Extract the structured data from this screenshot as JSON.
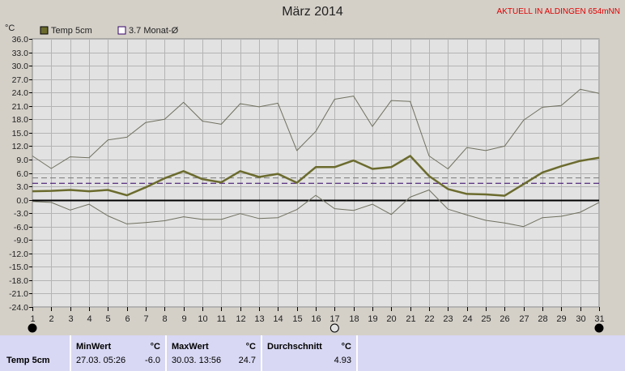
{
  "header": {
    "title": "März 2014",
    "status": "AKTUELL IN ALDINGEN 654mNN"
  },
  "chart_data": {
    "type": "line",
    "ylabel": "°C",
    "ylim": [
      -24,
      36
    ],
    "yticks": [
      "36.0",
      "33.0",
      "30.0",
      "27.0",
      "24.0",
      "21.0",
      "18.0",
      "15.0",
      "12.0",
      "9.0",
      "6.0",
      "3.0",
      "0.0",
      "-3.0",
      "-6.0",
      "-9.0",
      "-12.0",
      "-15.0",
      "-18.0",
      "-21.0",
      "-24.0"
    ],
    "x": [
      1,
      2,
      3,
      4,
      5,
      6,
      7,
      8,
      9,
      10,
      11,
      12,
      13,
      14,
      15,
      16,
      17,
      18,
      19,
      20,
      21,
      22,
      23,
      24,
      25,
      26,
      27,
      28,
      29,
      30,
      31
    ],
    "legend": [
      {
        "label": "Temp 5cm",
        "color": "#6b6b2e"
      },
      {
        "label": "3.7 Monat-Ø",
        "color": "#330066"
      }
    ],
    "series": [
      {
        "name": "Temp 5cm",
        "color": "#6b6b2e",
        "values": [
          1.9,
          2.0,
          2.2,
          1.9,
          2.2,
          1.0,
          2.8,
          4.8,
          6.4,
          4.6,
          3.9,
          6.4,
          5.1,
          5.8,
          3.8,
          7.3,
          7.3,
          8.8,
          6.9,
          7.3,
          9.8,
          5.3,
          2.4,
          1.3,
          1.2,
          0.9,
          3.5,
          6.1,
          7.5,
          8.7,
          9.4
        ]
      },
      {
        "name": "Max",
        "color": "#707060",
        "values": [
          9.8,
          7.0,
          9.6,
          9.4,
          13.4,
          14.0,
          17.3,
          18.0,
          21.8,
          17.6,
          16.9,
          21.5,
          20.8,
          21.6,
          11.0,
          15.3,
          22.5,
          23.2,
          16.4,
          22.2,
          22.0,
          9.8,
          6.9,
          11.7,
          11.0,
          12.0,
          17.8,
          20.7,
          21.1,
          24.7,
          23.8
        ]
      },
      {
        "name": "Min",
        "color": "#707060",
        "values": [
          -0.4,
          -0.6,
          -2.3,
          -1.0,
          -3.6,
          -5.4,
          -5.1,
          -4.7,
          -3.8,
          -4.4,
          -4.4,
          -3.1,
          -4.2,
          -4.0,
          -2.2,
          1.0,
          -2.0,
          -2.4,
          -1.0,
          -3.3,
          0.6,
          2.2,
          -2.1,
          -3.4,
          -4.6,
          -5.2,
          -6.0,
          -4.0,
          -3.7,
          -2.8,
          -0.6
        ]
      }
    ],
    "avg_line": 3.7,
    "ref_lines": [
      4.9,
      3.7
    ],
    "grid": true
  },
  "stats": {
    "row_label": "Temp 5cm",
    "min": {
      "header": "MinWert",
      "unit": "°C",
      "time": "27.03.  05:26",
      "value": "-6.0"
    },
    "max": {
      "header": "MaxWert",
      "unit": "°C",
      "time": "30.03.  13:56",
      "value": "24.7"
    },
    "avg": {
      "header": "Durchschnitt",
      "unit": "°C",
      "value": "4.93"
    }
  }
}
